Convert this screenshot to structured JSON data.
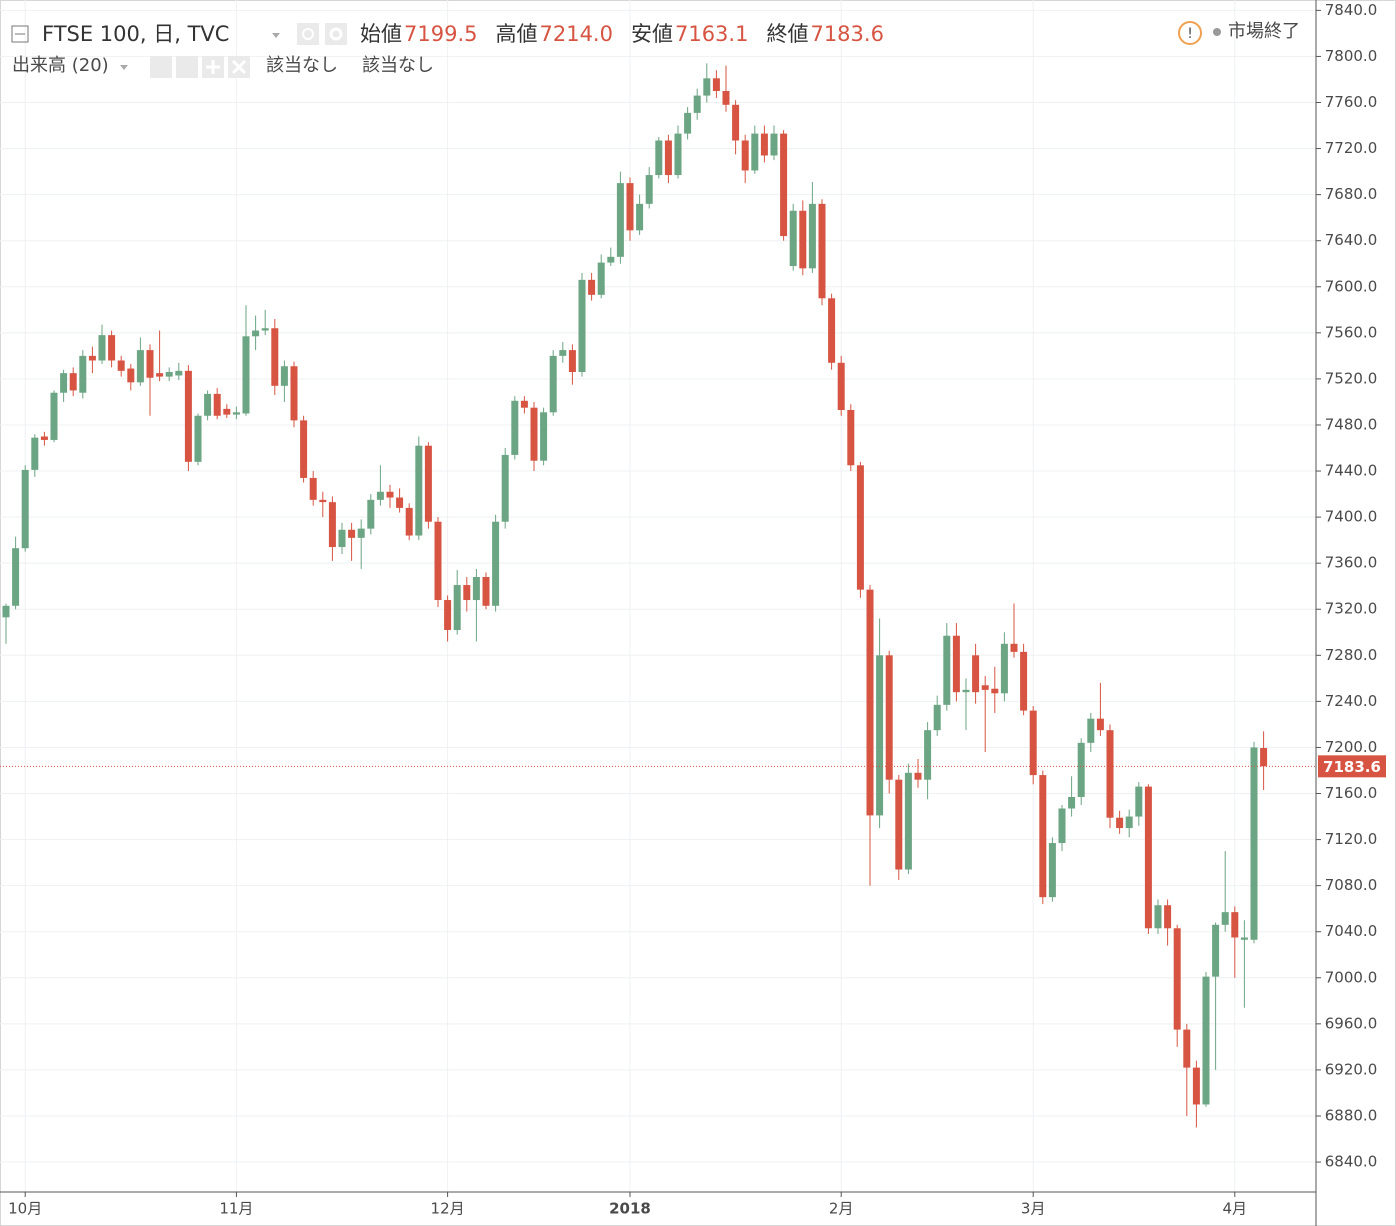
{
  "chart_data": {
    "type": "candlestick",
    "title": "FTSE 100, 日, TVC",
    "ohlc_legend": [
      {
        "label": "始値",
        "value": "7199.5"
      },
      {
        "label": "高値",
        "value": "7214.0"
      },
      {
        "label": "安値",
        "value": "7163.1"
      },
      {
        "label": "終値",
        "value": "7183.6"
      }
    ],
    "indicator": {
      "name": "出来高 (20)",
      "values": [
        "該当なし",
        "該当なし"
      ]
    },
    "status": "市場終了",
    "up_color": "#6ba583",
    "down_color": "#d75442",
    "grid": true,
    "ylim": [
      6814,
      7849
    ],
    "yticks": [
      {
        "value": 6840,
        "label": "6840.0"
      },
      {
        "value": 6880,
        "label": "6880.0"
      },
      {
        "value": 6920,
        "label": "6920.0"
      },
      {
        "value": 6960,
        "label": "6960.0"
      },
      {
        "value": 7000,
        "label": "7000.0"
      },
      {
        "value": 7040,
        "label": "7040.0"
      },
      {
        "value": 7080,
        "label": "7080.0"
      },
      {
        "value": 7120,
        "label": "7120.0"
      },
      {
        "value": 7160,
        "label": "7160.0"
      },
      {
        "value": 7200,
        "label": "7200.0"
      },
      {
        "value": 7240,
        "label": "7240.0"
      },
      {
        "value": 7280,
        "label": "7280.0"
      },
      {
        "value": 7320,
        "label": "7320.0"
      },
      {
        "value": 7360,
        "label": "7360.0"
      },
      {
        "value": 7400,
        "label": "7400.0"
      },
      {
        "value": 7440,
        "label": "7440.0"
      },
      {
        "value": 7480,
        "label": "7480.0"
      },
      {
        "value": 7520,
        "label": "7520.0"
      },
      {
        "value": 7560,
        "label": "7560.0"
      },
      {
        "value": 7600,
        "label": "7600.0"
      },
      {
        "value": 7640,
        "label": "7640.0"
      },
      {
        "value": 7680,
        "label": "7680.0"
      },
      {
        "value": 7720,
        "label": "7720.0"
      },
      {
        "value": 7760,
        "label": "7760.0"
      },
      {
        "value": 7800,
        "label": "7800.0"
      },
      {
        "value": 7840,
        "label": "7840.0"
      }
    ],
    "categories": [
      null,
      null,
      "10月",
      null,
      null,
      null,
      null,
      null,
      null,
      null,
      null,
      null,
      null,
      null,
      null,
      null,
      null,
      null,
      null,
      null,
      null,
      null,
      null,
      null,
      "11月",
      null,
      null,
      null,
      null,
      null,
      null,
      null,
      null,
      null,
      null,
      null,
      null,
      null,
      null,
      null,
      null,
      null,
      null,
      null,
      null,
      null,
      "12月",
      null,
      null,
      null,
      null,
      null,
      null,
      null,
      null,
      null,
      null,
      null,
      null,
      null,
      null,
      null,
      null,
      null,
      null,
      "2018",
      null,
      null,
      null,
      null,
      null,
      null,
      null,
      null,
      null,
      null,
      null,
      null,
      null,
      null,
      null,
      null,
      null,
      null,
      null,
      null,
      null,
      "2月",
      null,
      null,
      null,
      null,
      null,
      null,
      null,
      null,
      null,
      null,
      null,
      null,
      null,
      null,
      null,
      null,
      null,
      null,
      null,
      "3月",
      null,
      null,
      null,
      null,
      null,
      null,
      null,
      null,
      null,
      null,
      null,
      null,
      null,
      null,
      null,
      null,
      null,
      null,
      null,
      null,
      "4月",
      null,
      null,
      null
    ],
    "open": [
      7313,
      7323,
      7373,
      7441,
      7470,
      7467,
      7508,
      7525,
      7508,
      7540,
      7536,
      7558,
      7536,
      7529,
      7517,
      7545,
      7525,
      7522,
      7523,
      7527,
      7448,
      7488,
      7507,
      7494,
      7489,
      7490,
      7557,
      7562,
      7564,
      7514,
      7531,
      7484,
      7434,
      7415,
      7413,
      7374,
      7389,
      7382,
      7390,
      7415,
      7422,
      7417,
      7408,
      7384,
      7462,
      7396,
      7328,
      7302,
      7341,
      7328,
      7348,
      7323,
      7396,
      7454,
      7501,
      7495,
      7449,
      7491,
      7540,
      7545,
      7526,
      7606,
      7593,
      7621,
      7626,
      7690,
      7649,
      7672,
      7697,
      7727,
      7697,
      7733,
      7751,
      7766,
      7781,
      7770,
      7758,
      7727,
      7701,
      7733,
      7714,
      7733,
      7618,
      7666,
      7616,
      7672,
      7590,
      7534,
      7493,
      7445,
      7337,
      7141,
      7280,
      7172,
      7094,
      7178,
      7172,
      7215,
      7237,
      7297,
      7248,
      7280,
      7254,
      7251,
      7247,
      7290,
      7283,
      7232,
      7176,
      7070,
      7117,
      7147,
      7157,
      7204,
      7225,
      7215,
      7139,
      7130,
      7140,
      7166,
      7043,
      7063,
      7043,
      6955,
      6922,
      6890,
      7001,
      7046,
      7057,
      7033,
      7033,
      7199.5
    ],
    "high": [
      7325,
      7383,
      7445,
      7472,
      7474,
      7510,
      7528,
      7530,
      7545,
      7548,
      7567,
      7562,
      7540,
      7533,
      7556,
      7550,
      7562,
      7530,
      7534,
      7532,
      7490,
      7510,
      7512,
      7498,
      7496,
      7584,
      7575,
      7580,
      7572,
      7536,
      7535,
      7488,
      7440,
      7422,
      7418,
      7395,
      7395,
      7398,
      7420,
      7445,
      7428,
      7425,
      7412,
      7470,
      7465,
      7400,
      7332,
      7354,
      7348,
      7355,
      7352,
      7402,
      7460,
      7505,
      7505,
      7500,
      7495,
      7545,
      7552,
      7550,
      7612,
      7612,
      7628,
      7634,
      7700,
      7695,
      7680,
      7704,
      7730,
      7732,
      7740,
      7756,
      7772,
      7794,
      7788,
      7792,
      7762,
      7732,
      7740,
      7740,
      7740,
      7736,
      7672,
      7675,
      7691,
      7676,
      7594,
      7540,
      7498,
      7448,
      7341,
      7312,
      7284,
      7176,
      7186,
      7190,
      7222,
      7245,
      7308,
      7308,
      7260,
      7290,
      7262,
      7270,
      7300,
      7325,
      7290,
      7236,
      7180,
      7122,
      7150,
      7175,
      7208,
      7230,
      7256,
      7220,
      7145,
      7146,
      7170,
      7168,
      7068,
      7068,
      7046,
      6960,
      6928,
      7005,
      7048,
      7110,
      7062,
      7050,
      7205,
      7214.0
    ],
    "low": [
      7290,
      7320,
      7370,
      7435,
      7462,
      7465,
      7500,
      7505,
      7503,
      7525,
      7533,
      7530,
      7522,
      7510,
      7514,
      7488,
      7518,
      7518,
      7519,
      7440,
      7445,
      7484,
      7485,
      7486,
      7485,
      7488,
      7545,
      7558,
      7506,
      7500,
      7478,
      7430,
      7410,
      7400,
      7362,
      7368,
      7362,
      7355,
      7385,
      7410,
      7408,
      7404,
      7380,
      7380,
      7390,
      7322,
      7292,
      7298,
      7318,
      7292,
      7320,
      7318,
      7390,
      7450,
      7490,
      7440,
      7445,
      7488,
      7534,
      7515,
      7522,
      7588,
      7590,
      7618,
      7620,
      7640,
      7645,
      7668,
      7694,
      7690,
      7694,
      7728,
      7745,
      7760,
      7764,
      7752,
      7715,
      7690,
      7698,
      7708,
      7710,
      7640,
      7614,
      7610,
      7612,
      7584,
      7528,
      7488,
      7440,
      7330,
      7080,
      7130,
      7160,
      7085,
      7090,
      7165,
      7155,
      7210,
      7232,
      7240,
      7215,
      7238,
      7196,
      7230,
      7240,
      7278,
      7228,
      7168,
      7064,
      7066,
      7110,
      7140,
      7150,
      7196,
      7210,
      7130,
      7125,
      7122,
      7132,
      7038,
      7038,
      7028,
      6940,
      6880,
      6870,
      6888,
      6920,
      7040,
      7000,
      6974,
      7030,
      7163.1
    ],
    "close": [
      7323,
      7373,
      7441,
      7469,
      7467,
      7508,
      7525,
      7510,
      7540,
      7536,
      7558,
      7536,
      7527,
      7517,
      7545,
      7521,
      7522,
      7526,
      7527,
      7448,
      7488,
      7507,
      7488,
      7489,
      7491,
      7557,
      7562,
      7564,
      7514,
      7531,
      7484,
      7434,
      7415,
      7413,
      7374,
      7389,
      7382,
      7390,
      7415,
      7422,
      7417,
      7408,
      7384,
      7462,
      7396,
      7328,
      7302,
      7341,
      7328,
      7348,
      7323,
      7396,
      7454,
      7501,
      7495,
      7449,
      7491,
      7540,
      7545,
      7526,
      7606,
      7593,
      7621,
      7626,
      7690,
      7649,
      7672,
      7697,
      7727,
      7697,
      7733,
      7751,
      7766,
      7781,
      7770,
      7758,
      7727,
      7701,
      7733,
      7714,
      7733,
      7644,
      7666,
      7616,
      7672,
      7590,
      7534,
      7493,
      7445,
      7337,
      7141,
      7280,
      7172,
      7094,
      7178,
      7172,
      7215,
      7237,
      7297,
      7248,
      7250,
      7248,
      7250,
      7247,
      7290,
      7283,
      7232,
      7176,
      7070,
      7117,
      7147,
      7157,
      7204,
      7225,
      7215,
      7139,
      7130,
      7140,
      7166,
      7043,
      7063,
      7043,
      6955,
      6922,
      6890,
      7001,
      7046,
      7057,
      7035,
      7035,
      7200,
      7183.6
    ]
  }
}
